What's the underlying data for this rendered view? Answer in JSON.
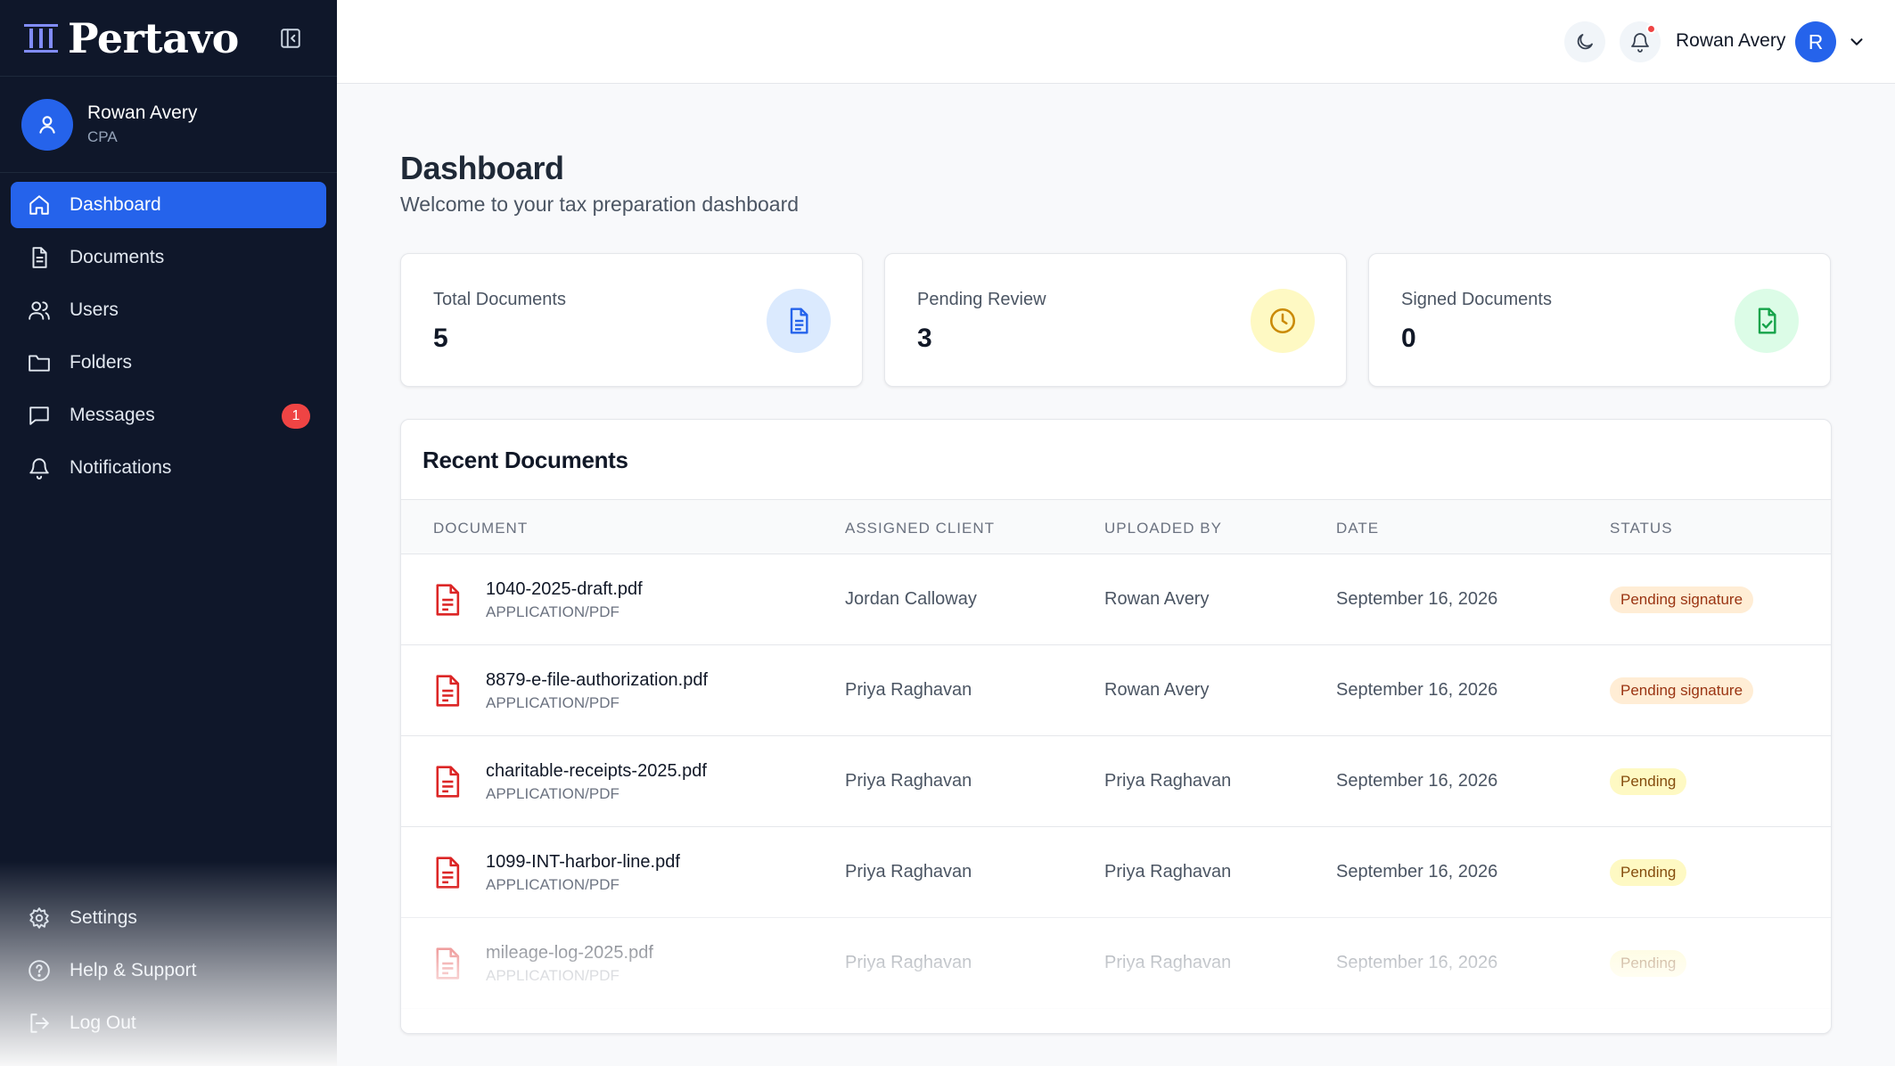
{
  "brand": {
    "name": "Pertavo"
  },
  "profile": {
    "name": "Rowan Avery",
    "role": "CPA"
  },
  "nav": {
    "items": [
      {
        "label": "Dashboard",
        "icon": "home-icon",
        "active": true
      },
      {
        "label": "Documents",
        "icon": "document-icon"
      },
      {
        "label": "Users",
        "icon": "users-icon"
      },
      {
        "label": "Folders",
        "icon": "folder-icon"
      },
      {
        "label": "Messages",
        "icon": "message-icon",
        "badge": "1"
      },
      {
        "label": "Notifications",
        "icon": "bell-icon"
      }
    ],
    "bottom": [
      {
        "label": "Settings",
        "icon": "gear-icon"
      },
      {
        "label": "Help & Support",
        "icon": "help-icon"
      },
      {
        "label": "Log Out",
        "icon": "logout-icon"
      }
    ]
  },
  "topbar": {
    "user_name": "Rowan Avery",
    "avatar_initial": "R"
  },
  "page": {
    "title": "Dashboard",
    "subtitle": "Welcome to your tax preparation dashboard"
  },
  "stats": [
    {
      "label": "Total Documents",
      "value": "5",
      "icon": "document-icon",
      "color": "#2563eb"
    },
    {
      "label": "Pending Review",
      "value": "3",
      "icon": "clock-icon",
      "color": "#ca8a04"
    },
    {
      "label": "Signed Documents",
      "value": "0",
      "icon": "document-check-icon",
      "color": "#16a34a"
    }
  ],
  "recent": {
    "title": "Recent Documents",
    "columns": [
      "DOCUMENT",
      "ASSIGNED CLIENT",
      "UPLOADED BY",
      "DATE",
      "STATUS"
    ],
    "rows": [
      {
        "name": "1040-2025-draft.pdf",
        "type": "APPLICATION/PDF",
        "client": "Jordan Calloway",
        "uploaded_by": "Rowan Avery",
        "date": "September 16, 2026",
        "status": "Pending signature"
      },
      {
        "name": "8879-e-file-authorization.pdf",
        "type": "APPLICATION/PDF",
        "client": "Priya Raghavan",
        "uploaded_by": "Rowan Avery",
        "date": "September 16, 2026",
        "status": "Pending signature"
      },
      {
        "name": "charitable-receipts-2025.pdf",
        "type": "APPLICATION/PDF",
        "client": "Priya Raghavan",
        "uploaded_by": "Priya Raghavan",
        "date": "September 16, 2026",
        "status": "Pending"
      },
      {
        "name": "1099-INT-harbor-line.pdf",
        "type": "APPLICATION/PDF",
        "client": "Priya Raghavan",
        "uploaded_by": "Priya Raghavan",
        "date": "September 16, 2026",
        "status": "Pending"
      },
      {
        "name": "mileage-log-2025.pdf",
        "type": "APPLICATION/PDF",
        "client": "Priya Raghavan",
        "uploaded_by": "Priya Raghavan",
        "date": "September 16, 2026",
        "status": "Pending"
      }
    ]
  },
  "colors": {
    "sidebar_bg": "#0f172a",
    "accent": "#2563eb",
    "danger": "#ef4444",
    "file_icon": "#dc2626"
  }
}
